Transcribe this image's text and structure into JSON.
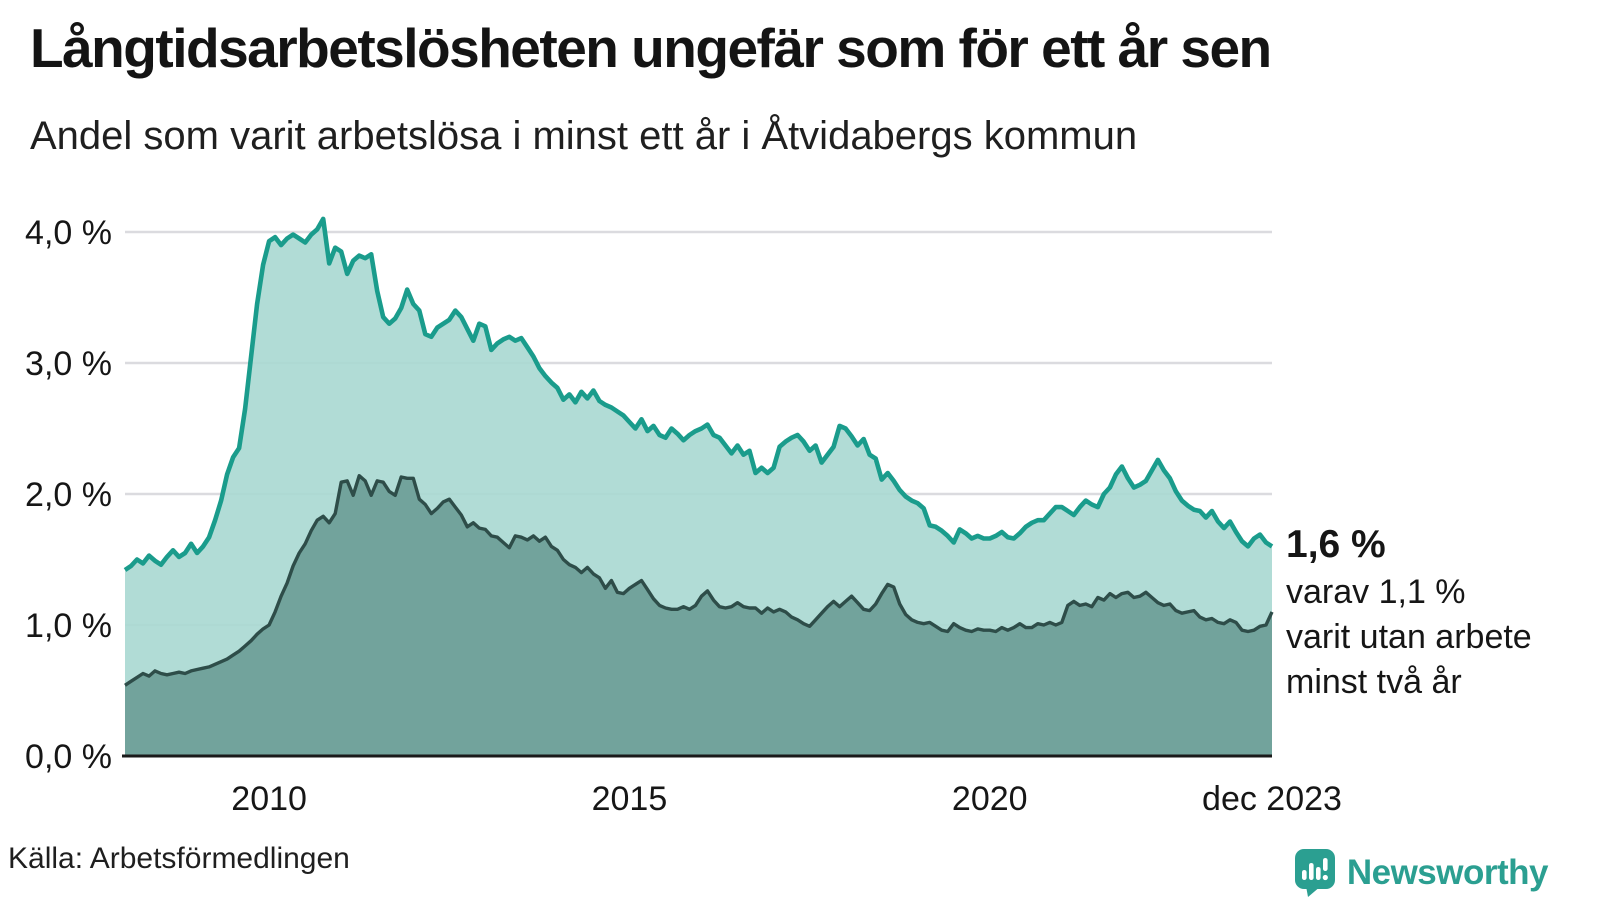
{
  "title": "Långtidsarbetslösheten ungefär som för ett år sen",
  "subtitle": "Andel som varit arbetslösa i minst ett år i Åtvidabergs kommun",
  "annotation": {
    "value": "1,6 %",
    "line2": "varav 1,1 %",
    "line3": "varit utan arbete",
    "line4": "minst två år"
  },
  "source": "Källa: Arbetsförmedlingen",
  "logo": {
    "text": "Newsworthy",
    "icon": "speech-bubble-bar-chart-icon"
  },
  "colors": {
    "line_1yr": "#1a9c8c",
    "fill_1yr": "#a8d8d1",
    "line_2yr": "#2e4d49",
    "fill_2yr": "#6fa099",
    "gridline": "#dbdbdf",
    "axis_line": "#1a1a1a",
    "text": "#161616",
    "brand_teal": "#2b9f91"
  },
  "chart_data": {
    "type": "area",
    "title": "Långtidsarbetslösheten ungefär som för ett år sen",
    "subtitle": "Andel som varit arbetslösa i minst ett år i Åtvidabergs kommun",
    "unit": "%",
    "frequency": "monthly",
    "x_start": "2008-01",
    "x_end": "2023-12",
    "ylim": [
      0,
      4.3
    ],
    "grid": true,
    "y_ticks": [
      0,
      1,
      2,
      3,
      4
    ],
    "y_tick_labels": [
      "0,0 %",
      "1,0 %",
      "2,0 %",
      "3,0 %",
      "4,0 %"
    ],
    "x_ticks": [
      {
        "label": "2010",
        "month_index": 24
      },
      {
        "label": "2015",
        "month_index": 84
      },
      {
        "label": "2020",
        "month_index": 144
      },
      {
        "label": "dec 2023",
        "month_index": 191
      }
    ],
    "series": [
      {
        "name": "Andel arbetslösa minst ett år",
        "line_color": "#1a9c8c",
        "fill_color": "#a8d8d1",
        "last_value": 1.6,
        "values": [
          1.42,
          1.45,
          1.5,
          1.47,
          1.53,
          1.49,
          1.46,
          1.52,
          1.57,
          1.52,
          1.55,
          1.62,
          1.55,
          1.6,
          1.67,
          1.8,
          1.95,
          2.15,
          2.28,
          2.35,
          2.65,
          3.05,
          3.45,
          3.75,
          3.93,
          3.96,
          3.9,
          3.95,
          3.98,
          3.95,
          3.92,
          3.98,
          4.02,
          4.1,
          3.76,
          3.88,
          3.85,
          3.68,
          3.78,
          3.82,
          3.8,
          3.83,
          3.55,
          3.35,
          3.3,
          3.34,
          3.42,
          3.56,
          3.45,
          3.4,
          3.22,
          3.2,
          3.27,
          3.3,
          3.33,
          3.4,
          3.35,
          3.26,
          3.17,
          3.3,
          3.28,
          3.1,
          3.15,
          3.18,
          3.2,
          3.17,
          3.19,
          3.12,
          3.05,
          2.96,
          2.9,
          2.85,
          2.81,
          2.72,
          2.76,
          2.7,
          2.78,
          2.73,
          2.79,
          2.71,
          2.68,
          2.66,
          2.63,
          2.6,
          2.55,
          2.5,
          2.57,
          2.48,
          2.52,
          2.45,
          2.43,
          2.5,
          2.46,
          2.41,
          2.45,
          2.48,
          2.5,
          2.53,
          2.45,
          2.43,
          2.37,
          2.31,
          2.37,
          2.3,
          2.33,
          2.16,
          2.2,
          2.16,
          2.2,
          2.36,
          2.4,
          2.43,
          2.45,
          2.4,
          2.33,
          2.37,
          2.24,
          2.3,
          2.36,
          2.52,
          2.5,
          2.44,
          2.37,
          2.42,
          2.3,
          2.27,
          2.11,
          2.16,
          2.1,
          2.03,
          1.98,
          1.95,
          1.93,
          1.89,
          1.76,
          1.75,
          1.72,
          1.68,
          1.63,
          1.73,
          1.7,
          1.66,
          1.68,
          1.66,
          1.66,
          1.68,
          1.71,
          1.67,
          1.66,
          1.7,
          1.75,
          1.78,
          1.8,
          1.8,
          1.85,
          1.9,
          1.9,
          1.87,
          1.84,
          1.9,
          1.95,
          1.92,
          1.9,
          2.0,
          2.05,
          2.15,
          2.21,
          2.12,
          2.05,
          2.07,
          2.1,
          2.18,
          2.26,
          2.18,
          2.12,
          2.02,
          1.95,
          1.91,
          1.88,
          1.87,
          1.82,
          1.87,
          1.79,
          1.74,
          1.79,
          1.71,
          1.64,
          1.6,
          1.66,
          1.69,
          1.63,
          1.6
        ]
      },
      {
        "name": "varav arbetslösa minst två år",
        "line_color": "#2e4d49",
        "fill_color": "#6fa099",
        "last_value": 1.1,
        "values": [
          0.54,
          0.57,
          0.6,
          0.63,
          0.61,
          0.65,
          0.63,
          0.62,
          0.63,
          0.64,
          0.63,
          0.65,
          0.66,
          0.67,
          0.68,
          0.7,
          0.72,
          0.74,
          0.77,
          0.8,
          0.84,
          0.88,
          0.93,
          0.97,
          1.0,
          1.1,
          1.22,
          1.32,
          1.45,
          1.55,
          1.62,
          1.72,
          1.8,
          1.83,
          1.78,
          1.85,
          2.09,
          2.1,
          1.99,
          2.14,
          2.1,
          1.99,
          2.1,
          2.09,
          2.02,
          1.99,
          2.13,
          2.12,
          2.12,
          1.96,
          1.92,
          1.85,
          1.89,
          1.94,
          1.96,
          1.9,
          1.84,
          1.75,
          1.78,
          1.74,
          1.73,
          1.68,
          1.67,
          1.63,
          1.59,
          1.68,
          1.67,
          1.65,
          1.68,
          1.64,
          1.67,
          1.6,
          1.57,
          1.5,
          1.46,
          1.44,
          1.4,
          1.44,
          1.39,
          1.36,
          1.28,
          1.34,
          1.25,
          1.24,
          1.28,
          1.31,
          1.34,
          1.27,
          1.2,
          1.15,
          1.13,
          1.12,
          1.12,
          1.14,
          1.12,
          1.15,
          1.22,
          1.26,
          1.19,
          1.14,
          1.13,
          1.14,
          1.17,
          1.14,
          1.13,
          1.13,
          1.09,
          1.13,
          1.1,
          1.12,
          1.1,
          1.06,
          1.04,
          1.01,
          0.99,
          1.04,
          1.09,
          1.14,
          1.18,
          1.14,
          1.18,
          1.22,
          1.17,
          1.12,
          1.11,
          1.16,
          1.24,
          1.31,
          1.29,
          1.16,
          1.08,
          1.04,
          1.02,
          1.01,
          1.02,
          0.99,
          0.96,
          0.95,
          1.01,
          0.98,
          0.96,
          0.95,
          0.97,
          0.96,
          0.96,
          0.95,
          0.98,
          0.96,
          0.98,
          1.01,
          0.98,
          0.98,
          1.01,
          1.0,
          1.02,
          1.0,
          1.02,
          1.15,
          1.18,
          1.15,
          1.16,
          1.14,
          1.21,
          1.19,
          1.24,
          1.21,
          1.24,
          1.25,
          1.21,
          1.22,
          1.25,
          1.21,
          1.17,
          1.15,
          1.16,
          1.11,
          1.09,
          1.1,
          1.11,
          1.06,
          1.04,
          1.05,
          1.02,
          1.01,
          1.04,
          1.02,
          0.96,
          0.95,
          0.96,
          0.99,
          1.0,
          1.1
        ]
      }
    ]
  }
}
